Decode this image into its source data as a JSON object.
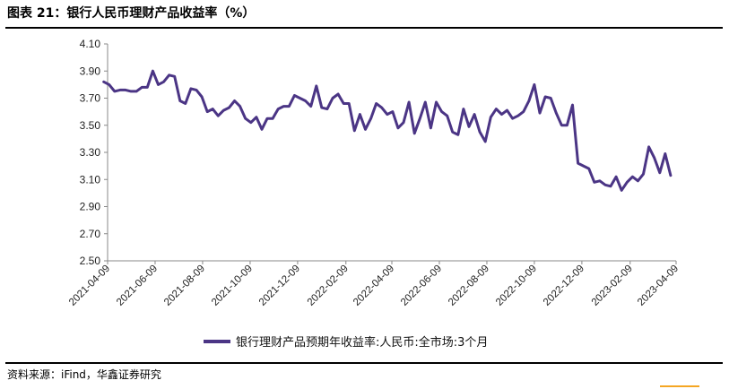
{
  "figure": {
    "title": "图表 21：银行人民币理财产品收益率（%）",
    "source": "资料来源：iFind，华鑫证券研究"
  },
  "colors": {
    "series": "#4b3585",
    "axis": "#888888",
    "accent": "#f5a623"
  },
  "chart_data": {
    "type": "line",
    "title": "",
    "xlabel": "",
    "ylabel": "",
    "ylim": [
      2.5,
      4.1
    ],
    "y_ticks": [
      "4.10",
      "3.90",
      "3.70",
      "3.50",
      "3.30",
      "3.10",
      "2.90",
      "2.70",
      "2.50"
    ],
    "x_ticks": [
      "2021-04-09",
      "2021-06-09",
      "2021-08-09",
      "2021-10-09",
      "2021-12-09",
      "2022-02-09",
      "2022-04-09",
      "2022-06-09",
      "2022-08-09",
      "2022-10-09",
      "2022-12-09",
      "2023-02-09",
      "2023-04-09"
    ],
    "xlim": [
      "2021-04-09",
      "2023-04-09"
    ],
    "grid": false,
    "legend_position": "bottom",
    "series": [
      {
        "name": "银行理财产品预期年收益率:人民币:全市场:3个月",
        "points": [
          [
            "2021-04-04",
            3.82
          ],
          [
            "2021-04-11",
            3.8
          ],
          [
            "2021-04-18",
            3.75
          ],
          [
            "2021-04-25",
            3.76
          ],
          [
            "2021-05-02",
            3.76
          ],
          [
            "2021-05-09",
            3.75
          ],
          [
            "2021-05-16",
            3.75
          ],
          [
            "2021-05-23",
            3.78
          ],
          [
            "2021-05-30",
            3.78
          ],
          [
            "2021-06-06",
            3.9
          ],
          [
            "2021-06-13",
            3.8
          ],
          [
            "2021-06-20",
            3.82
          ],
          [
            "2021-06-27",
            3.87
          ],
          [
            "2021-07-04",
            3.86
          ],
          [
            "2021-07-11",
            3.68
          ],
          [
            "2021-07-18",
            3.66
          ],
          [
            "2021-07-25",
            3.77
          ],
          [
            "2021-08-01",
            3.76
          ],
          [
            "2021-08-08",
            3.71
          ],
          [
            "2021-08-15",
            3.6
          ],
          [
            "2021-08-22",
            3.62
          ],
          [
            "2021-08-29",
            3.57
          ],
          [
            "2021-09-05",
            3.61
          ],
          [
            "2021-09-12",
            3.63
          ],
          [
            "2021-09-19",
            3.68
          ],
          [
            "2021-09-26",
            3.64
          ],
          [
            "2021-10-03",
            3.55
          ],
          [
            "2021-10-10",
            3.52
          ],
          [
            "2021-10-17",
            3.56
          ],
          [
            "2021-10-24",
            3.47
          ],
          [
            "2021-10-31",
            3.55
          ],
          [
            "2021-11-07",
            3.55
          ],
          [
            "2021-11-14",
            3.62
          ],
          [
            "2021-11-21",
            3.64
          ],
          [
            "2021-11-28",
            3.64
          ],
          [
            "2021-12-05",
            3.72
          ],
          [
            "2021-12-12",
            3.7
          ],
          [
            "2021-12-19",
            3.68
          ],
          [
            "2021-12-26",
            3.64
          ],
          [
            "2022-01-02",
            3.79
          ],
          [
            "2022-01-09",
            3.63
          ],
          [
            "2022-01-16",
            3.62
          ],
          [
            "2022-01-23",
            3.7
          ],
          [
            "2022-01-30",
            3.73
          ],
          [
            "2022-02-06",
            3.66
          ],
          [
            "2022-02-13",
            3.66
          ],
          [
            "2022-02-20",
            3.46
          ],
          [
            "2022-02-27",
            3.58
          ],
          [
            "2022-03-06",
            3.47
          ],
          [
            "2022-03-13",
            3.55
          ],
          [
            "2022-03-20",
            3.66
          ],
          [
            "2022-03-27",
            3.63
          ],
          [
            "2022-04-03",
            3.58
          ],
          [
            "2022-04-10",
            3.6
          ],
          [
            "2022-04-17",
            3.48
          ],
          [
            "2022-04-24",
            3.52
          ],
          [
            "2022-05-01",
            3.67
          ],
          [
            "2022-05-08",
            3.44
          ],
          [
            "2022-05-15",
            3.55
          ],
          [
            "2022-05-22",
            3.67
          ],
          [
            "2022-05-29",
            3.48
          ],
          [
            "2022-06-05",
            3.67
          ],
          [
            "2022-06-12",
            3.6
          ],
          [
            "2022-06-19",
            3.57
          ],
          [
            "2022-06-26",
            3.45
          ],
          [
            "2022-07-03",
            3.43
          ],
          [
            "2022-07-10",
            3.62
          ],
          [
            "2022-07-17",
            3.49
          ],
          [
            "2022-07-24",
            3.58
          ],
          [
            "2022-07-31",
            3.45
          ],
          [
            "2022-08-07",
            3.38
          ],
          [
            "2022-08-14",
            3.56
          ],
          [
            "2022-08-21",
            3.62
          ],
          [
            "2022-08-28",
            3.58
          ],
          [
            "2022-09-04",
            3.61
          ],
          [
            "2022-09-11",
            3.55
          ],
          [
            "2022-09-18",
            3.57
          ],
          [
            "2022-09-25",
            3.6
          ],
          [
            "2022-10-02",
            3.68
          ],
          [
            "2022-10-09",
            3.8
          ],
          [
            "2022-10-16",
            3.59
          ],
          [
            "2022-10-23",
            3.71
          ],
          [
            "2022-10-30",
            3.7
          ],
          [
            "2022-11-06",
            3.59
          ],
          [
            "2022-11-13",
            3.5
          ],
          [
            "2022-11-20",
            3.5
          ],
          [
            "2022-11-27",
            3.65
          ],
          [
            "2022-12-04",
            3.22
          ],
          [
            "2022-12-11",
            3.2
          ],
          [
            "2022-12-18",
            3.18
          ],
          [
            "2022-12-25",
            3.08
          ],
          [
            "2023-01-01",
            3.09
          ],
          [
            "2023-01-08",
            3.06
          ],
          [
            "2023-01-15",
            3.05
          ],
          [
            "2023-01-22",
            3.12
          ],
          [
            "2023-01-29",
            3.02
          ],
          [
            "2023-02-05",
            3.08
          ],
          [
            "2023-02-12",
            3.12
          ],
          [
            "2023-02-19",
            3.09
          ],
          [
            "2023-02-26",
            3.14
          ],
          [
            "2023-03-05",
            3.34
          ],
          [
            "2023-03-12",
            3.26
          ],
          [
            "2023-03-19",
            3.15
          ],
          [
            "2023-03-26",
            3.29
          ],
          [
            "2023-04-02",
            3.13
          ]
        ]
      }
    ]
  }
}
